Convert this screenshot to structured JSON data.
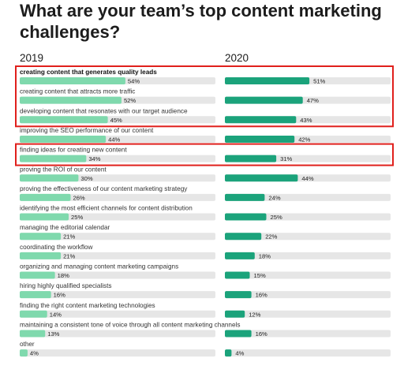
{
  "title": "What are your team’s top content marketing challenges?",
  "colors": {
    "bar_2019": "#7fd9ad",
    "bar_2020": "#1ba37b",
    "track": "#e6e6e6",
    "highlight": "#e0201c"
  },
  "chart_data": {
    "type": "bar",
    "title": "What are your team’s top content marketing challenges?",
    "xlim": [
      0,
      100
    ],
    "series": [
      {
        "name": "2019",
        "values": [
          54,
          52,
          45,
          44,
          34,
          30,
          26,
          25,
          21,
          21,
          18,
          16,
          14,
          13,
          4
        ]
      },
      {
        "name": "2020",
        "values": [
          51,
          47,
          43,
          42,
          31,
          44,
          24,
          25,
          22,
          18,
          15,
          16,
          12,
          16,
          4
        ]
      }
    ],
    "categories": [
      "creating content that generates quality leads",
      "creating content that attracts more traffic",
      "developing content that resonates with our target audience",
      "improving the SEO performance of our content",
      "finding ideas for creating new content",
      "proving the ROI of our content",
      "proving the effectiveness of our content marketing strategy",
      "identifying the most efficient channels for content distribution",
      "managing the editorial calendar",
      "coordinating the workflow",
      "organizing and managing content marketing campaigns",
      "hiring highly qualified specialists",
      "finding the right content marketing technologies",
      "maintaining a consistent tone of voice through all content marketing channels",
      "other"
    ],
    "value_labels_2019": [
      "54%",
      "52%",
      "45%",
      "44%",
      "34%",
      "30%",
      "26%",
      "25%",
      "21%",
      "21%",
      "18%",
      "16%",
      "14%",
      "13%",
      "4%"
    ],
    "value_labels_2020": [
      "51%",
      "47%",
      "43%",
      "42%",
      "31%",
      "44%",
      "24%",
      "25%",
      "22%",
      "18%",
      "15%",
      "16%",
      "12%",
      "16%",
      "4%"
    ],
    "highlighted_groups": [
      [
        0,
        1,
        2
      ],
      [
        4
      ]
    ],
    "legend": "column headers"
  }
}
